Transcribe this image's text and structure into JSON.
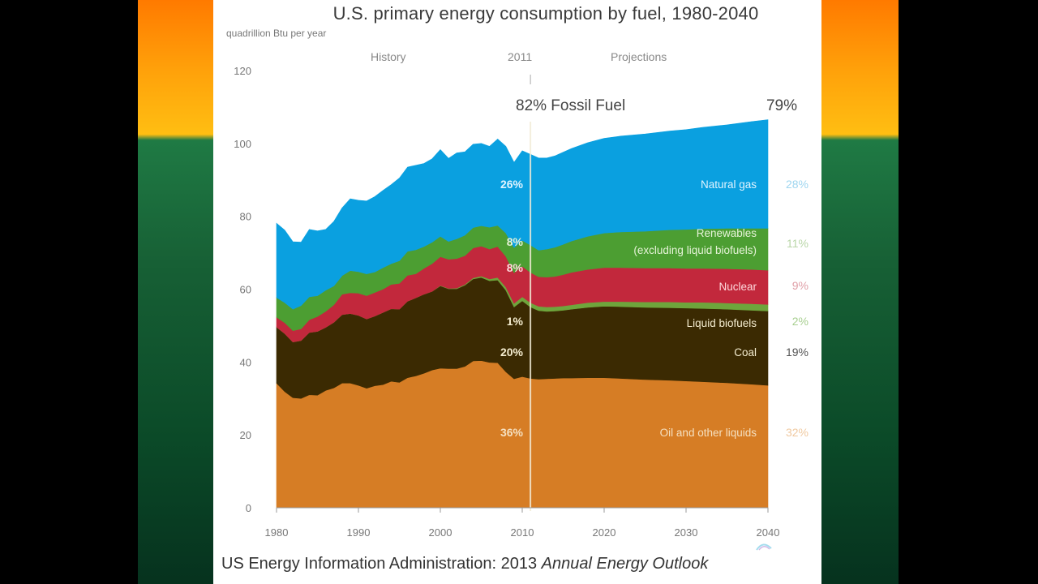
{
  "slide": {
    "footer_prefix": "US Energy Information Administration: 2013 ",
    "footer_italic": "Annual Energy Outlook",
    "logo_text": "eia"
  },
  "background_colors": {
    "outer": "#000000",
    "band_top": "#ff7a00",
    "band_horizon": "#ffbe12",
    "band_bottom": "#06321e"
  },
  "chart_data": {
    "type": "area",
    "stacked": true,
    "title": "U.S. primary energy consumption by fuel, 1980-2040",
    "ylabel": "quadrillion Btu per year",
    "xlabel": "",
    "xlim": [
      1980,
      2040
    ],
    "ylim": [
      0,
      120
    ],
    "x_ticks": [
      1980,
      1990,
      2000,
      2010,
      2020,
      2030,
      2040
    ],
    "y_ticks": [
      0,
      20,
      40,
      60,
      80,
      100,
      120
    ],
    "grid": false,
    "divider": {
      "year": 2011,
      "label": "2011",
      "left_label": "History",
      "right_label": "Projections"
    },
    "fossil_share": {
      "left": "82% Fossil Fuel",
      "right": "79%"
    },
    "x": [
      1980,
      1981,
      1982,
      1983,
      1984,
      1985,
      1986,
      1987,
      1988,
      1989,
      1990,
      1991,
      1992,
      1993,
      1994,
      1995,
      1996,
      1997,
      1998,
      1999,
      2000,
      2001,
      2002,
      2003,
      2004,
      2005,
      2006,
      2007,
      2008,
      2009,
      2010,
      2011,
      2012,
      2013,
      2014,
      2015,
      2016,
      2018,
      2020,
      2022,
      2025,
      2028,
      2030,
      2032,
      2035,
      2038,
      2040
    ],
    "series": [
      {
        "name": "Oil and other liquids",
        "color": "#d67d25",
        "label_color": "#f5e0c0",
        "share_2011": "36%",
        "share_2040": "32%",
        "values": [
          34.2,
          31.9,
          30.2,
          30.0,
          31.0,
          30.9,
          32.2,
          32.9,
          34.2,
          34.2,
          33.6,
          32.8,
          33.5,
          33.8,
          34.7,
          34.4,
          35.7,
          36.2,
          36.9,
          37.8,
          38.3,
          38.2,
          38.2,
          38.8,
          40.3,
          40.4,
          39.9,
          39.8,
          37.3,
          35.4,
          36.0,
          35.5,
          35.3,
          35.4,
          35.5,
          35.6,
          35.6,
          35.7,
          35.7,
          35.5,
          35.2,
          35.0,
          34.8,
          34.6,
          34.3,
          33.9,
          33.6
        ]
      },
      {
        "name": "Coal",
        "color": "#3b2a02",
        "label_color": "#f5edd0",
        "share_2011": "20%",
        "share_2040": "19%",
        "values": [
          15.4,
          15.9,
          15.3,
          15.9,
          17.1,
          17.5,
          17.3,
          18.0,
          18.8,
          19.1,
          19.2,
          19.0,
          19.1,
          19.8,
          19.9,
          20.1,
          21.0,
          21.4,
          21.7,
          21.6,
          22.6,
          21.9,
          21.9,
          22.3,
          22.5,
          22.8,
          22.4,
          22.7,
          22.4,
          19.7,
          20.8,
          19.6,
          18.8,
          18.5,
          18.5,
          18.6,
          18.9,
          19.3,
          19.6,
          19.7,
          19.8,
          19.9,
          20.0,
          20.1,
          20.2,
          20.3,
          20.4
        ]
      },
      {
        "name": "Liquid biofuels",
        "color": "#6ea53c",
        "label_color": "#f5edd0",
        "share_2011": "1%",
        "share_2040": "2%",
        "values": [
          0.0,
          0.0,
          0.0,
          0.0,
          0.0,
          0.0,
          0.0,
          0.0,
          0.0,
          0.0,
          0.0,
          0.0,
          0.0,
          0.0,
          0.0,
          0.0,
          0.0,
          0.0,
          0.0,
          0.0,
          0.1,
          0.1,
          0.2,
          0.2,
          0.3,
          0.4,
          0.5,
          0.7,
          0.9,
          1.0,
          1.1,
          1.2,
          1.2,
          1.2,
          1.2,
          1.2,
          1.2,
          1.3,
          1.3,
          1.4,
          1.5,
          1.6,
          1.6,
          1.7,
          1.7,
          1.8,
          1.8
        ]
      },
      {
        "name": "Nuclear",
        "color": "#c2283c",
        "label_color": "#ffd8dc",
        "share_2011": "8%",
        "share_2040": "9%",
        "values": [
          2.7,
          3.0,
          3.1,
          3.2,
          3.5,
          4.1,
          4.4,
          4.8,
          5.6,
          5.7,
          6.1,
          6.4,
          6.5,
          6.4,
          6.7,
          7.1,
          7.1,
          6.6,
          7.1,
          7.6,
          7.9,
          8.0,
          8.1,
          7.9,
          8.2,
          8.2,
          8.2,
          8.5,
          8.4,
          8.4,
          8.4,
          8.3,
          8.1,
          8.2,
          8.3,
          8.6,
          8.9,
          9.1,
          9.3,
          9.3,
          9.3,
          9.3,
          9.3,
          9.3,
          9.4,
          9.4,
          9.4
        ]
      },
      {
        "name": "Renewables (excluding liquid biofuels)",
        "color": "#4c9e32",
        "label_color": "#e6f3d8",
        "share_2011": "8%",
        "share_2040": "11%",
        "values": [
          5.4,
          5.5,
          5.9,
          6.4,
          6.3,
          5.7,
          5.8,
          5.2,
          5.1,
          6.1,
          5.9,
          6.0,
          5.6,
          5.9,
          5.7,
          6.2,
          6.6,
          6.6,
          6.0,
          5.9,
          5.6,
          4.9,
          5.4,
          5.6,
          5.6,
          5.6,
          6.0,
          5.8,
          6.4,
          6.9,
          7.1,
          7.5,
          7.3,
          7.7,
          8.0,
          8.3,
          8.6,
          9.1,
          9.5,
          9.8,
          10.1,
          10.5,
          10.7,
          10.9,
          11.1,
          11.3,
          11.5
        ]
      },
      {
        "name": "Natural gas",
        "color": "#0aa0e0",
        "label_color": "#e0f4ff",
        "share_2011": "26%",
        "share_2040": "28%",
        "values": [
          20.4,
          19.9,
          18.5,
          17.4,
          18.5,
          17.8,
          16.7,
          17.7,
          18.6,
          19.7,
          19.6,
          20.0,
          20.7,
          21.2,
          21.7,
          22.7,
          23.1,
          23.2,
          22.8,
          22.9,
          23.8,
          22.8,
          23.6,
          22.9,
          22.9,
          22.6,
          22.2,
          23.7,
          23.8,
          23.4,
          24.6,
          24.9,
          25.3,
          25.0,
          25.1,
          25.3,
          25.4,
          25.7,
          26.0,
          26.3,
          26.7,
          27.1,
          27.4,
          27.8,
          28.4,
          29.3,
          29.8
        ]
      }
    ],
    "labels": {
      "natural_gas": "Natural gas",
      "renewables_line1": "Renewables",
      "renewables_line2": "(excluding liquid biofuels)",
      "nuclear": "Nuclear",
      "liquid_biofuels": "Liquid biofuels",
      "coal": "Coal",
      "oil": "Oil and other liquids"
    }
  }
}
